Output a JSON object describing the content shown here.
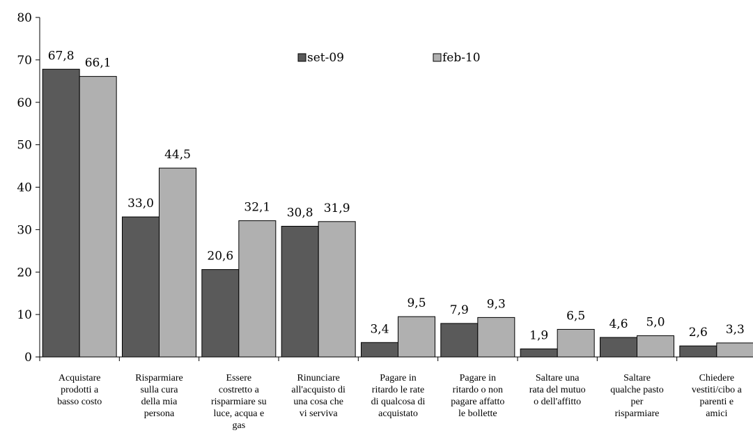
{
  "chart_data": {
    "type": "bar",
    "title": "",
    "xlabel": "",
    "ylabel": "",
    "ylim": [
      0,
      80
    ],
    "yticks": [
      0,
      10,
      20,
      30,
      40,
      50,
      60,
      70,
      80
    ],
    "grid": false,
    "legend_position": "top-center",
    "categories": [
      [
        "Acquistare",
        "prodotti a",
        "basso costo"
      ],
      [
        "Risparmiare",
        "sulla cura",
        "della mia",
        "persona"
      ],
      [
        "Essere",
        "costretto a",
        "risparmiare su",
        "luce, acqua e",
        "gas"
      ],
      [
        "Rinunciare",
        "all'acquisto di",
        "una cosa che",
        "vi serviva"
      ],
      [
        "Pagare in",
        "ritardo le rate",
        "di qualcosa di",
        "acquistato"
      ],
      [
        "Pagare in",
        "ritardo o non",
        "pagare affatto",
        "le bollette"
      ],
      [
        "Saltare una",
        "rata del mutuo",
        "o dell'affitto"
      ],
      [
        "Saltare",
        "qualche pasto",
        "per",
        "risparmiare"
      ],
      [
        "Chiedere",
        "vestiti/cibo a",
        "parenti e",
        "amici"
      ]
    ],
    "series": [
      {
        "name": "set-09",
        "color": "#5a5a5a",
        "values": [
          67.8,
          33.0,
          20.6,
          30.8,
          3.4,
          7.9,
          1.9,
          4.6,
          2.6
        ],
        "labels": [
          "67,8",
          "33,0",
          "20,6",
          "30,8",
          "3,4",
          "7,9",
          "1,9",
          "4,6",
          "2,6"
        ]
      },
      {
        "name": "feb-10",
        "color": "#b0b0b0",
        "values": [
          66.1,
          44.5,
          32.1,
          31.9,
          9.5,
          9.3,
          6.5,
          5.0,
          3.3
        ],
        "labels": [
          "66,1",
          "44,5",
          "32,1",
          "31,9",
          "9,5",
          "9,3",
          "6,5",
          "5,0",
          "3,3"
        ]
      }
    ]
  }
}
